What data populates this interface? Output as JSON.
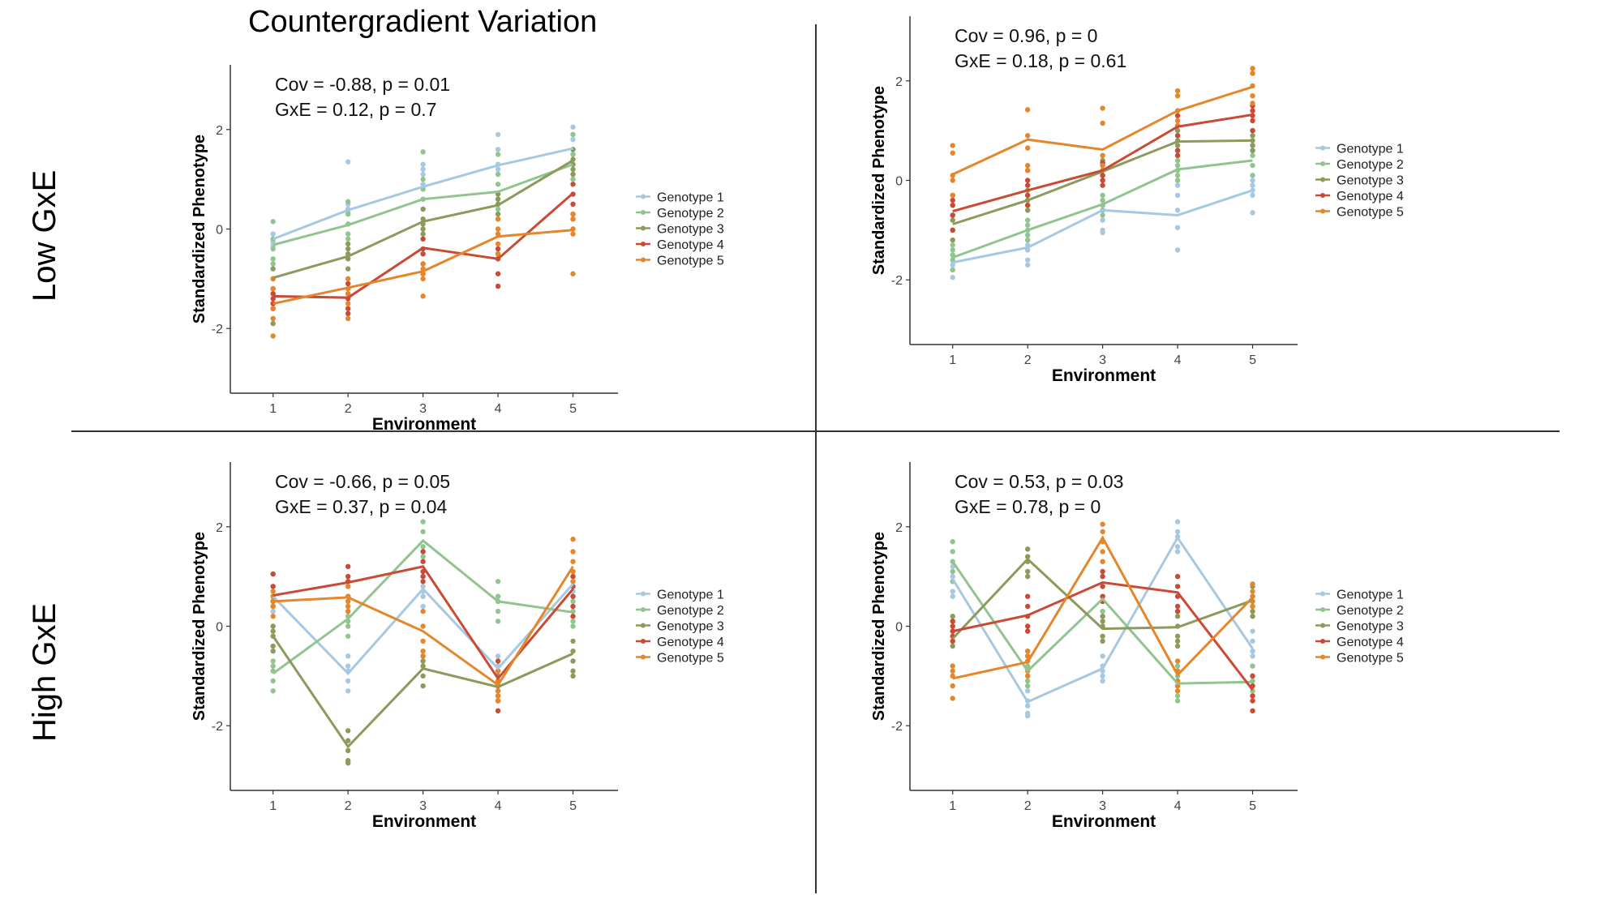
{
  "title": "Countergradient Variation",
  "row_labels": [
    "Low GxE",
    "High GxE"
  ],
  "colors": {
    "Genotype 1": "#a6c8e0",
    "Genotype 2": "#92c48f",
    "Genotype 3": "#8c9a5b",
    "Genotype 4": "#c94a35",
    "Genotype 5": "#e4862b"
  },
  "chart_data": [
    {
      "type": "line",
      "panel": "top-left",
      "annotation": [
        "Cov = -0.88, p = 0.01",
        "GxE = 0.12, p = 0.7"
      ],
      "xlabel": "Environment",
      "ylabel": "Standardized Phenotype",
      "x": [
        1,
        2,
        3,
        4,
        5
      ],
      "xlim": [
        0.43,
        5.6
      ],
      "ylim": [
        -3.3,
        3.3
      ],
      "yticks": [
        -2,
        0,
        2
      ],
      "legend": "right",
      "series": [
        {
          "name": "Genotype 1",
          "values": [
            -0.2,
            0.38,
            0.85,
            1.28,
            1.62
          ],
          "points": [
            [
              -0.1,
              -0.25,
              -0.3,
              -0.2,
              -0.35
            ],
            [
              1.35,
              0.4,
              0.3,
              0.5,
              0.35
            ],
            [
              1.3,
              1.2,
              0.9,
              1.1,
              0.8
            ],
            [
              1.9,
              1.6,
              1.3,
              1.2,
              1.1
            ],
            [
              2.05,
              1.9,
              1.8,
              1.6,
              1.5
            ]
          ]
        },
        {
          "name": "Genotype 2",
          "values": [
            -0.32,
            0.08,
            0.6,
            0.75,
            1.3
          ],
          "points": [
            [
              0.15,
              -0.2,
              -0.4,
              -0.6,
              -0.7
            ],
            [
              0.55,
              0.3,
              0.1,
              -0.1,
              -0.2
            ],
            [
              1.55,
              1.0,
              0.8,
              0.6,
              0.4
            ],
            [
              1.5,
              1.1,
              0.9,
              0.6,
              0.4
            ],
            [
              1.9,
              1.5,
              1.3,
              1.1,
              1.0
            ]
          ]
        },
        {
          "name": "Genotype 3",
          "values": [
            -0.98,
            -0.55,
            0.15,
            0.48,
            1.38
          ],
          "points": [
            [
              -1.0,
              -1.3,
              -1.5,
              -1.9,
              -0.8
            ],
            [
              -0.3,
              -0.5,
              -0.6,
              -0.8,
              -0.4
            ],
            [
              0.4,
              0.2,
              0.0,
              -0.1,
              0.1
            ],
            [
              0.7,
              0.5,
              0.3,
              0.6,
              0.2
            ],
            [
              1.6,
              1.4,
              1.3,
              1.2,
              1.1
            ]
          ]
        },
        {
          "name": "Genotype 4",
          "values": [
            -1.35,
            -1.38,
            -0.38,
            -0.6,
            0.72
          ],
          "points": [
            [
              -1.3,
              -1.5,
              -1.4,
              -1.6,
              -1.2
            ],
            [
              -1.1,
              -1.4,
              -1.6,
              -1.7,
              -1.3
            ],
            [
              -0.2,
              -0.5,
              -0.7,
              -0.9,
              -0.4
            ],
            [
              -0.4,
              -0.5,
              -0.9,
              -1.15,
              -0.6
            ],
            [
              0.9,
              0.7,
              0.5,
              0.3,
              0.2
            ]
          ]
        },
        {
          "name": "Genotype 5",
          "values": [
            -1.5,
            -1.18,
            -0.85,
            -0.15,
            -0.02
          ],
          "points": [
            [
              -1.2,
              -1.6,
              -1.8,
              -2.15,
              -1.0
            ],
            [
              -1.0,
              -1.2,
              -1.3,
              -1.5,
              -1.8
            ],
            [
              -0.7,
              -0.9,
              -1.0,
              -1.35,
              -0.8
            ],
            [
              0.2,
              0.0,
              -0.1,
              -0.3,
              -0.5
            ],
            [
              0.3,
              0.0,
              -0.1,
              -0.9,
              0.2
            ]
          ]
        }
      ]
    },
    {
      "type": "line",
      "panel": "top-right",
      "annotation": [
        "Cov = 0.96, p = 0",
        "GxE = 0.18, p = 0.61"
      ],
      "xlabel": "Environment",
      "ylabel": "Standardized Phenotype",
      "x": [
        1,
        2,
        3,
        4,
        5
      ],
      "xlim": [
        0.43,
        5.6
      ],
      "ylim": [
        -3.3,
        3.3
      ],
      "yticks": [
        -2,
        0,
        2
      ],
      "legend": "right",
      "series": [
        {
          "name": "Genotype 1",
          "values": [
            -1.65,
            -1.35,
            -0.6,
            -0.7,
            -0.2
          ],
          "points": [
            [
              -1.8,
              -1.95,
              -1.6,
              -1.7,
              -1.5
            ],
            [
              -1.6,
              -1.7,
              -1.3,
              -1.2,
              -1.4
            ],
            [
              -0.6,
              -0.8,
              -1.0,
              -1.05,
              -0.5
            ],
            [
              -0.3,
              -0.6,
              -0.95,
              -1.4,
              -0.1
            ],
            [
              0.0,
              -0.1,
              -0.3,
              -0.65,
              -0.2
            ]
          ]
        },
        {
          "name": "Genotype 2",
          "values": [
            -1.55,
            -1.0,
            -0.48,
            0.22,
            0.4
          ],
          "points": [
            [
              -1.5,
              -1.4,
              -1.3,
              -1.8,
              -1.6
            ],
            [
              -0.8,
              -0.9,
              -1.0,
              -1.2,
              -1.1
            ],
            [
              -0.3,
              -0.4,
              -0.5,
              -0.6,
              -0.7
            ],
            [
              0.4,
              0.3,
              0.2,
              0.1,
              0.0
            ],
            [
              0.7,
              0.6,
              0.5,
              0.3,
              0.1
            ]
          ]
        },
        {
          "name": "Genotype 3",
          "values": [
            -0.88,
            -0.4,
            0.18,
            0.78,
            0.8
          ],
          "points": [
            [
              -0.8,
              -1.0,
              -1.2,
              -0.7,
              -0.5
            ],
            [
              -0.2,
              -0.4,
              -0.6,
              -0.3,
              -0.5
            ],
            [
              0.3,
              0.2,
              0.1,
              0.0,
              0.4
            ],
            [
              1.0,
              0.9,
              0.8,
              0.7,
              0.6
            ],
            [
              1.0,
              0.9,
              0.8,
              0.7,
              0.6
            ]
          ]
        },
        {
          "name": "Genotype 4",
          "values": [
            -0.62,
            -0.2,
            0.2,
            1.08,
            1.32
          ],
          "points": [
            [
              -0.3,
              -0.5,
              -0.7,
              -1.0,
              -0.4
            ],
            [
              0.2,
              -0.1,
              -0.3,
              -0.5,
              0.0
            ],
            [
              0.35,
              0.2,
              0.1,
              -0.1,
              0.0
            ],
            [
              1.3,
              1.1,
              0.9,
              0.5,
              0.6
            ],
            [
              1.5,
              1.4,
              1.3,
              1.2,
              1.0
            ]
          ]
        },
        {
          "name": "Genotype 5",
          "values": [
            0.12,
            0.82,
            0.62,
            1.4,
            1.88
          ],
          "points": [
            [
              0.7,
              0.55,
              0.1,
              -0.3,
              0.0
            ],
            [
              1.42,
              0.9,
              0.65,
              0.3,
              0.2
            ],
            [
              1.45,
              1.15,
              0.5,
              0.3,
              0.2
            ],
            [
              1.8,
              1.7,
              1.4,
              1.1,
              1.2
            ],
            [
              2.25,
              2.15,
              1.9,
              1.7,
              1.55
            ]
          ]
        }
      ]
    },
    {
      "type": "line",
      "panel": "bottom-left",
      "annotation": [
        "Cov = -0.66, p = 0.05",
        "GxE = 0.37, p = 0.04"
      ],
      "xlabel": "Environment",
      "ylabel": "Standardized Phenotype",
      "x": [
        1,
        2,
        3,
        4,
        5
      ],
      "xlim": [
        0.43,
        5.6
      ],
      "ylim": [
        -3.3,
        3.3
      ],
      "yticks": [
        -2,
        0,
        2
      ],
      "legend": "right",
      "series": [
        {
          "name": "Genotype 1",
          "values": [
            0.6,
            -0.95,
            0.75,
            -0.85,
            0.85
          ],
          "points": [
            [
              0.8,
              0.5,
              0.3,
              0.6,
              0.4
            ],
            [
              -0.6,
              -0.9,
              -1.1,
              -1.3,
              -0.8
            ],
            [
              1.0,
              0.8,
              0.6,
              0.4,
              0.7
            ],
            [
              -0.6,
              -0.8,
              -1.0,
              -1.1,
              -0.9
            ],
            [
              1.0,
              0.9,
              0.8,
              0.7,
              0.6
            ]
          ]
        },
        {
          "name": "Genotype 2",
          "values": [
            -0.95,
            0.15,
            1.72,
            0.5,
            0.28
          ],
          "points": [
            [
              -0.9,
              -1.1,
              -1.3,
              -0.8,
              -0.7
            ],
            [
              0.3,
              0.0,
              -0.2,
              0.1,
              0.2
            ],
            [
              2.1,
              1.9,
              1.6,
              1.5,
              1.4
            ],
            [
              0.9,
              0.6,
              0.5,
              0.3,
              0.1
            ],
            [
              0.6,
              0.5,
              0.3,
              0.1,
              0.0
            ]
          ]
        },
        {
          "name": "Genotype 3",
          "values": [
            -0.2,
            -2.42,
            -0.85,
            -1.22,
            -0.55
          ],
          "points": [
            [
              0.0,
              -0.2,
              -0.4,
              -0.1,
              -0.5
            ],
            [
              -2.1,
              -2.3,
              -2.5,
              -2.7,
              -2.75
            ],
            [
              -0.6,
              -0.8,
              -1.0,
              -1.2,
              -0.7
            ],
            [
              -1.0,
              -1.2,
              -1.4,
              -1.1,
              -1.3
            ],
            [
              -0.3,
              -0.5,
              -0.7,
              -0.9,
              -1.0
            ]
          ]
        },
        {
          "name": "Genotype 4",
          "values": [
            0.62,
            0.88,
            1.2,
            -1.05,
            0.75
          ],
          "points": [
            [
              1.05,
              0.8,
              0.6,
              0.4,
              0.5
            ],
            [
              1.2,
              1.0,
              0.9,
              0.6,
              0.8
            ],
            [
              1.5,
              1.3,
              1.1,
              0.9,
              1.0
            ],
            [
              -0.7,
              -0.9,
              -1.2,
              -1.5,
              -1.7
            ],
            [
              1.0,
              0.8,
              0.6,
              0.4,
              0.2
            ]
          ]
        },
        {
          "name": "Genotype 5",
          "values": [
            0.5,
            0.58,
            -0.1,
            -1.18,
            1.2
          ],
          "points": [
            [
              0.7,
              0.6,
              0.4,
              0.2,
              0.5
            ],
            [
              0.8,
              0.6,
              0.5,
              0.3,
              0.4
            ],
            [
              0.3,
              0.0,
              -0.3,
              -0.5,
              -0.6
            ],
            [
              -0.9,
              -1.1,
              -1.3,
              -1.4,
              -1.5
            ],
            [
              1.75,
              1.5,
              1.3,
              1.1,
              0.9
            ]
          ]
        }
      ]
    },
    {
      "type": "line",
      "panel": "bottom-right",
      "annotation": [
        "Cov = 0.53, p = 0.03",
        "GxE = 0.78, p = 0"
      ],
      "xlabel": "Environment",
      "ylabel": "Standardized Phenotype",
      "x": [
        1,
        2,
        3,
        4,
        5
      ],
      "xlim": [
        0.43,
        5.6
      ],
      "ylim": [
        -3.3,
        3.3
      ],
      "yticks": [
        -2,
        0,
        2
      ],
      "legend": "right",
      "series": [
        {
          "name": "Genotype 1",
          "values": [
            0.95,
            -1.52,
            -0.85,
            1.78,
            -0.45
          ],
          "points": [
            [
              1.2,
              1.0,
              0.9,
              0.7,
              0.6
            ],
            [
              -1.3,
              -1.5,
              -1.6,
              -1.75,
              -1.8
            ],
            [
              -0.6,
              -0.8,
              -1.0,
              -1.1,
              -0.9
            ],
            [
              2.1,
              1.9,
              1.8,
              1.6,
              1.5
            ],
            [
              -0.1,
              -0.3,
              -0.5,
              -0.6,
              -0.8
            ]
          ]
        },
        {
          "name": "Genotype 2",
          "values": [
            1.3,
            -0.9,
            0.55,
            -1.15,
            -1.12
          ],
          "points": [
            [
              1.7,
              1.5,
              1.3,
              1.1,
              0.9
            ],
            [
              -0.6,
              -0.8,
              -1.0,
              -1.2,
              -1.1
            ],
            [
              0.8,
              0.6,
              0.5,
              0.3,
              0.2
            ],
            [
              -0.8,
              -1.0,
              -1.2,
              -1.4,
              -1.5
            ],
            [
              -0.8,
              -1.0,
              -1.1,
              -1.3,
              -1.4
            ]
          ]
        },
        {
          "name": "Genotype 3",
          "values": [
            -0.25,
            1.35,
            -0.05,
            -0.02,
            0.52
          ],
          "points": [
            [
              0.1,
              -0.1,
              -0.3,
              -0.4,
              0.2
            ],
            [
              1.55,
              1.4,
              1.3,
              1.1,
              1.0
            ],
            [
              0.2,
              0.0,
              -0.2,
              -0.3,
              0.1
            ],
            [
              0.2,
              0.0,
              -0.2,
              -0.3,
              -0.4
            ],
            [
              0.8,
              0.6,
              0.4,
              0.3,
              0.2
            ]
          ]
        },
        {
          "name": "Genotype 4",
          "values": [
            -0.1,
            0.22,
            0.88,
            0.68,
            -1.28
          ],
          "points": [
            [
              0.1,
              -0.1,
              -0.2,
              -0.3,
              0.0
            ],
            [
              0.6,
              0.4,
              0.2,
              0.0,
              -0.1
            ],
            [
              1.1,
              1.0,
              0.8,
              0.6,
              0.5
            ],
            [
              1.0,
              0.8,
              0.6,
              0.4,
              0.3
            ],
            [
              -1.0,
              -1.2,
              -1.4,
              -1.5,
              -1.7
            ]
          ]
        },
        {
          "name": "Genotype 5",
          "values": [
            -1.05,
            -0.72,
            1.78,
            -0.98,
            0.58
          ],
          "points": [
            [
              -0.8,
              -1.0,
              -1.2,
              -1.45,
              -0.9
            ],
            [
              -0.5,
              -0.7,
              -0.9,
              -1.0,
              -0.6
            ],
            [
              2.05,
              1.9,
              1.7,
              1.5,
              1.3
            ],
            [
              -0.7,
              -0.9,
              -1.1,
              -1.2,
              -1.3
            ],
            [
              0.85,
              0.7,
              0.6,
              0.4,
              0.5
            ]
          ]
        }
      ]
    }
  ]
}
